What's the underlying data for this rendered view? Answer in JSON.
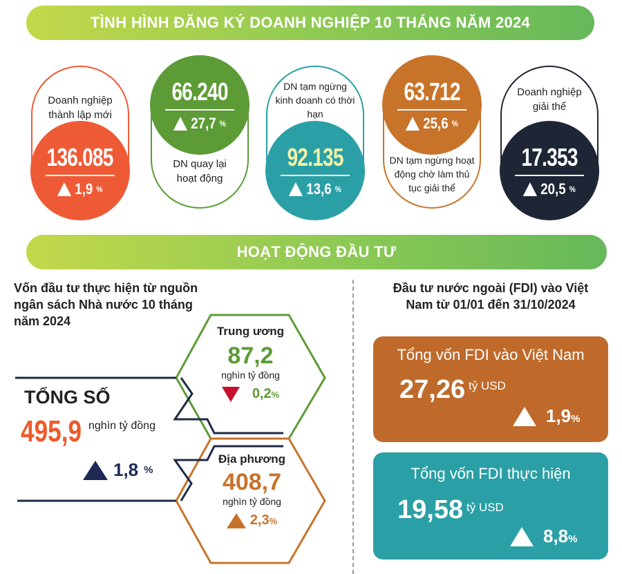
{
  "banner1": "TÌNH HÌNH ĐĂNG KÝ DOANH NGHIỆP 10 THÁNG NĂM 2024",
  "cards": [
    {
      "label": "Doanh nghiệp thành lập mới",
      "value": "136.085",
      "change": "1,9",
      "unit": "%",
      "direction": "up",
      "color": "#ee5a36"
    },
    {
      "label": "DN quay lại hoạt động",
      "value": "66.240",
      "change": "27,7",
      "unit": "%",
      "direction": "up",
      "color": "#5c9b35"
    },
    {
      "label": "DN tạm ngừng kinh doanh có thời hạn",
      "value": "92.135",
      "change": "13,6",
      "unit": "%",
      "direction": "up",
      "color": "#2aa0a6"
    },
    {
      "label": "DN tạm ngừng hoạt động chờ làm thủ tục giải thể",
      "value": "63.712",
      "change": "25,6",
      "unit": "%",
      "direction": "up",
      "color": "#c8732a"
    },
    {
      "label": "Doanh nghiệp giải thể",
      "value": "17.353",
      "change": "20,5",
      "unit": "%",
      "direction": "up",
      "color": "#1e2636"
    }
  ],
  "banner2": "HOẠT ĐỘNG ĐẦU TƯ",
  "budget": {
    "title": "Vốn đầu tư thực hiện từ nguồn ngân sách Nhà nước 10 tháng năm 2024",
    "total_label": "TỔNG SỐ",
    "total_value": "495,9",
    "total_unit": "nghìn tỷ đồng",
    "total_change": "1,8",
    "pct": "%",
    "central": {
      "label": "Trung ương",
      "value": "87,2",
      "unit": "nghìn tỷ đồng",
      "change": "0,2",
      "direction": "down"
    },
    "local": {
      "label": "Địa phương",
      "value": "408,7",
      "unit": "nghìn tỷ đồng",
      "change": "2,3",
      "direction": "up"
    }
  },
  "fdi": {
    "title": "Đầu tư nước ngoài (FDI) vào Việt Nam từ 01/01 đến 31/10/2024",
    "boxes": [
      {
        "label": "Tổng vốn FDI vào Việt Nam",
        "value": "27,26",
        "unit": "tỷ USD",
        "change": "1,9",
        "pct": "%",
        "color": "#bf6a2b"
      },
      {
        "label": "Tổng vốn FDI thực hiện",
        "value": "19,58",
        "unit": "tỷ USD",
        "change": "8,8",
        "pct": "%",
        "color": "#2aa0a6"
      }
    ]
  }
}
